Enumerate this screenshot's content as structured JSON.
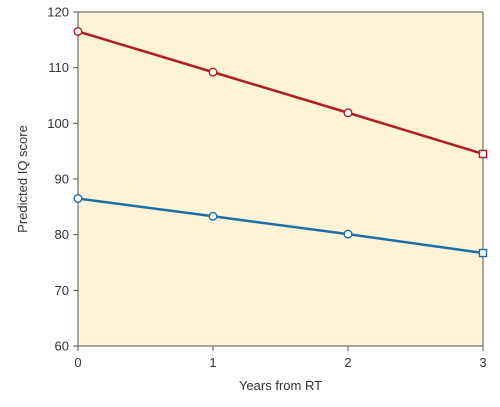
{
  "chart_data": {
    "type": "line",
    "title": "",
    "xlabel": "Years from RT",
    "ylabel": "Predicted IQ score",
    "x": [
      0,
      1,
      2,
      3
    ],
    "xlim": [
      0,
      3
    ],
    "ylim": [
      60,
      120
    ],
    "xticks": [
      0,
      1,
      2,
      3
    ],
    "yticks": [
      60,
      70,
      80,
      90,
      100,
      110,
      120
    ],
    "xtick_labels": [
      "0",
      "1",
      "2",
      "3"
    ],
    "ytick_labels": [
      "60",
      "70",
      "80",
      "90",
      "100",
      "110",
      "120"
    ],
    "grid": false,
    "legend": "none",
    "background_color": "#fdf3d7",
    "series": [
      {
        "values": [
          116.5,
          109.2,
          101.9,
          94.5
        ],
        "color": "#b01e23"
      },
      {
        "values": [
          86.5,
          83.3,
          80.1,
          76.7
        ],
        "color": "#1b6fa8"
      }
    ]
  }
}
